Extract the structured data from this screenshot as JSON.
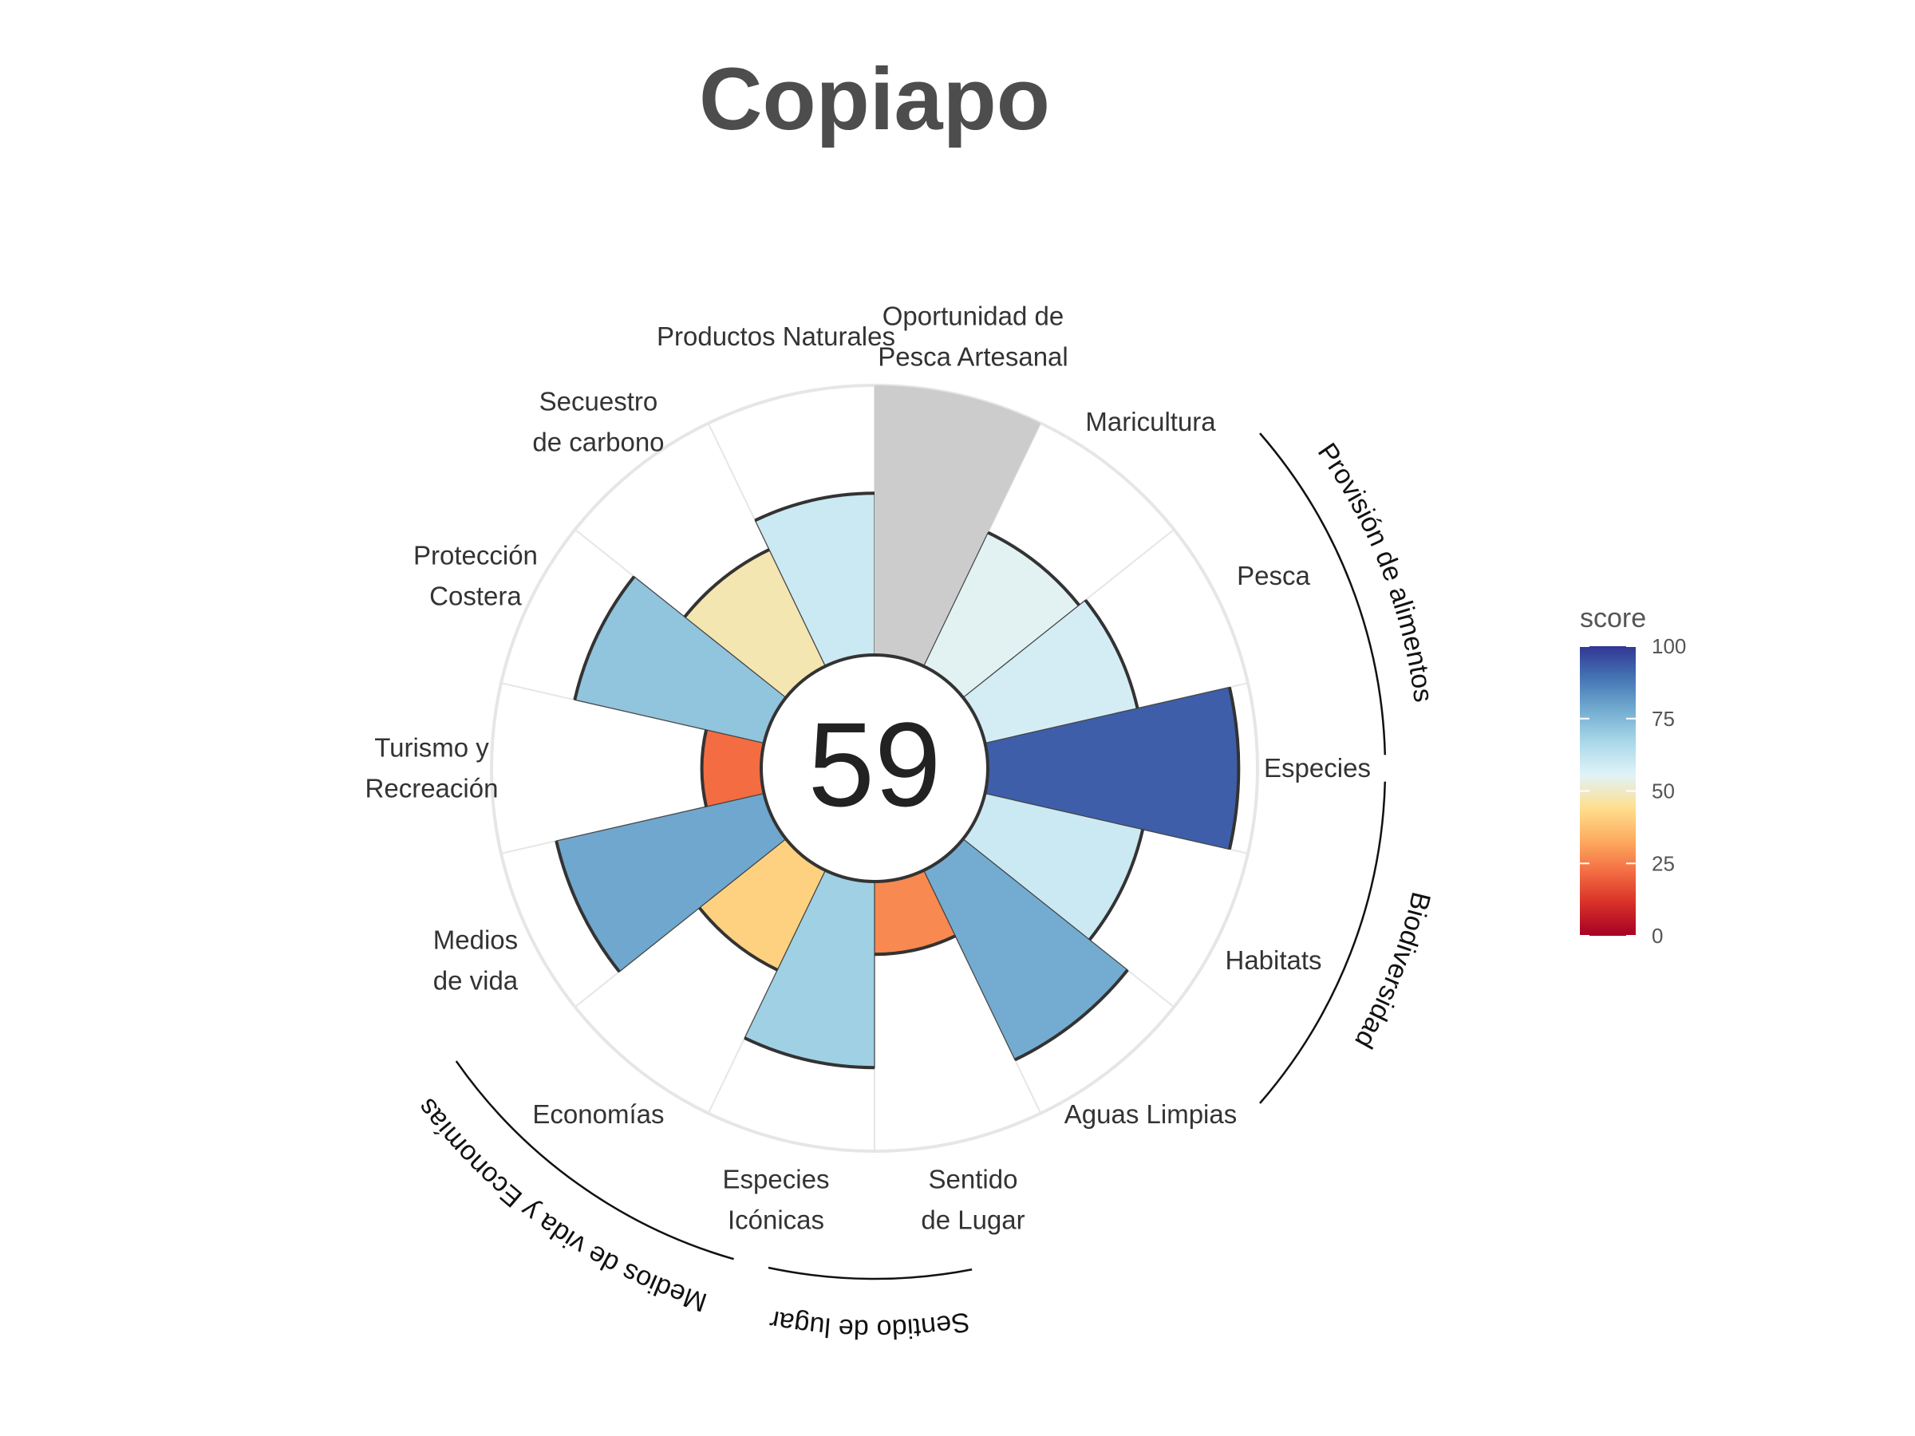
{
  "chart_data": {
    "type": "polar-bar",
    "title": "Copiapo",
    "center_score": "59",
    "max_score": 100,
    "goals": [
      {
        "label_lines": [
          "Especies"
        ],
        "score": 93,
        "group": "bio"
      },
      {
        "label_lines": [
          "Habitats"
        ],
        "score": 60,
        "group": "bio"
      },
      {
        "label_lines": [
          "Aguas Limpias"
        ],
        "score": 78,
        "group": "none"
      },
      {
        "label_lines": [
          "Sentido",
          "de Lugar"
        ],
        "score": 27,
        "group": "sdl"
      },
      {
        "label_lines": [
          "Especies",
          "Icónicas"
        ],
        "score": 69,
        "group": "sdl"
      },
      {
        "label_lines": [
          "Economías"
        ],
        "score": 41,
        "group": "mve"
      },
      {
        "label_lines": [
          "Medios",
          "de vida"
        ],
        "score": 79,
        "group": "mve"
      },
      {
        "label_lines": [
          "Turismo y",
          "Recreación"
        ],
        "score": 22,
        "group": "none"
      },
      {
        "label_lines": [
          "Protección",
          "Costera"
        ],
        "score": 72,
        "group": "none"
      },
      {
        "label_lines": [
          "Secuestro",
          "de carbono"
        ],
        "score": 48,
        "group": "none"
      },
      {
        "label_lines": [
          "Productos Naturales"
        ],
        "score": 60,
        "group": "none"
      },
      {
        "label_lines": [
          "Oportunidad de",
          "Pesca Artesanal"
        ],
        "score": null,
        "group": "none"
      },
      {
        "label_lines": [
          "Maricultura"
        ],
        "score": 55,
        "group": "pa"
      },
      {
        "label_lines": [
          "Pesca"
        ],
        "score": 58,
        "group": "pa"
      }
    ],
    "groups": {
      "pa": "Provisión de alimentos",
      "bio": "Biodiversidad",
      "sdl": "Sentido de lugar",
      "mve": "Medios de vida y Economías"
    },
    "legend": {
      "title": "score",
      "ticks": [
        "0",
        "25",
        "50",
        "75",
        "100"
      ],
      "colors": [
        "#a50026",
        "#d73027",
        "#f46d43",
        "#fdae61",
        "#fee090",
        "#e0f3f8",
        "#abd9e9",
        "#74add1",
        "#4575b4",
        "#313695"
      ]
    },
    "na_color": "#cccccc"
  }
}
